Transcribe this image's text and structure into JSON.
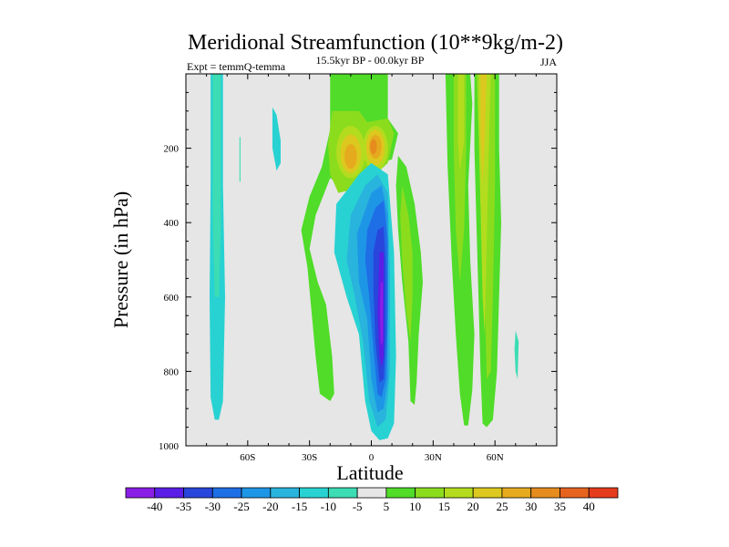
{
  "chart_data": {
    "type": "heatmap",
    "title": "Meridional Streamfunction (10**9kg/m-2)",
    "subtitle": "15.5kyr BP - 00.0kyr BP",
    "left_label": "Expt = temmQ-temma",
    "right_label": "JJA",
    "xlabel": "Latitude",
    "ylabel": "Pressure (in hPa)",
    "xlim": [
      -90,
      90
    ],
    "ylim": [
      1000,
      0
    ],
    "x_ticks": [
      {
        "value": -60,
        "label": "60S"
      },
      {
        "value": -30,
        "label": "30S"
      },
      {
        "value": 0,
        "label": "0"
      },
      {
        "value": 30,
        "label": "30N"
      },
      {
        "value": 60,
        "label": "60N"
      }
    ],
    "y_ticks": [
      {
        "value": 200,
        "label": "200"
      },
      {
        "value": 400,
        "label": "400"
      },
      {
        "value": 600,
        "label": "600"
      },
      {
        "value": 800,
        "label": "800"
      },
      {
        "value": 1000,
        "label": "1000"
      }
    ],
    "contour_levels": [
      -40,
      -35,
      -30,
      -25,
      -20,
      -15,
      -10,
      -5,
      5,
      10,
      15,
      20,
      25,
      30,
      35,
      40
    ],
    "colorbar_colors": [
      "#8a1ee6",
      "#5a1ee6",
      "#2846dc",
      "#1e6ee6",
      "#1e96e6",
      "#28b4dc",
      "#28d2d2",
      "#3cdcb4",
      "#e6e6e6",
      "#50dc28",
      "#8cdc1e",
      "#b4dc1e",
      "#dcc81e",
      "#e6aa1e",
      "#e68c1e",
      "#e6641e",
      "#e63c1e"
    ],
    "background_color": "#e6e6e6",
    "features": [
      {
        "name": "SH high-latitude column",
        "lat_range": [
          -78,
          -72
        ],
        "p_range": [
          0,
          940
        ],
        "value": -10
      },
      {
        "name": "Tropical deep cell",
        "lat_range": [
          -8,
          12
        ],
        "p_range": [
          250,
          980
        ],
        "peak_value": -40,
        "peak_p": 650,
        "peak_lat": 5
      },
      {
        "name": "Upper tropical positive cell",
        "lat_range": [
          -18,
          10
        ],
        "p_range": [
          0,
          310
        ],
        "peak_value": 30,
        "peak_p": 210,
        "peak_lat": -10
      },
      {
        "name": "Positive column NH subtropics",
        "lat_range": [
          12,
          25
        ],
        "p_range": [
          220,
          890
        ],
        "value": 10
      },
      {
        "name": "NH midlatitude positive column",
        "lat_range": [
          37,
          62
        ],
        "p_range": [
          0,
          945
        ],
        "peak_value": 20,
        "peak_lat": 50
      },
      {
        "name": "Small negative patch",
        "lat_range": [
          -48,
          -44
        ],
        "p_range": [
          100,
          260
        ],
        "value": -10
      }
    ],
    "colorbar_labels": [
      "-40",
      "-35",
      "-30",
      "-25",
      "-20",
      "-15",
      "-10",
      "-5",
      "5",
      "10",
      "15",
      "20",
      "25",
      "30",
      "35",
      "40"
    ]
  }
}
